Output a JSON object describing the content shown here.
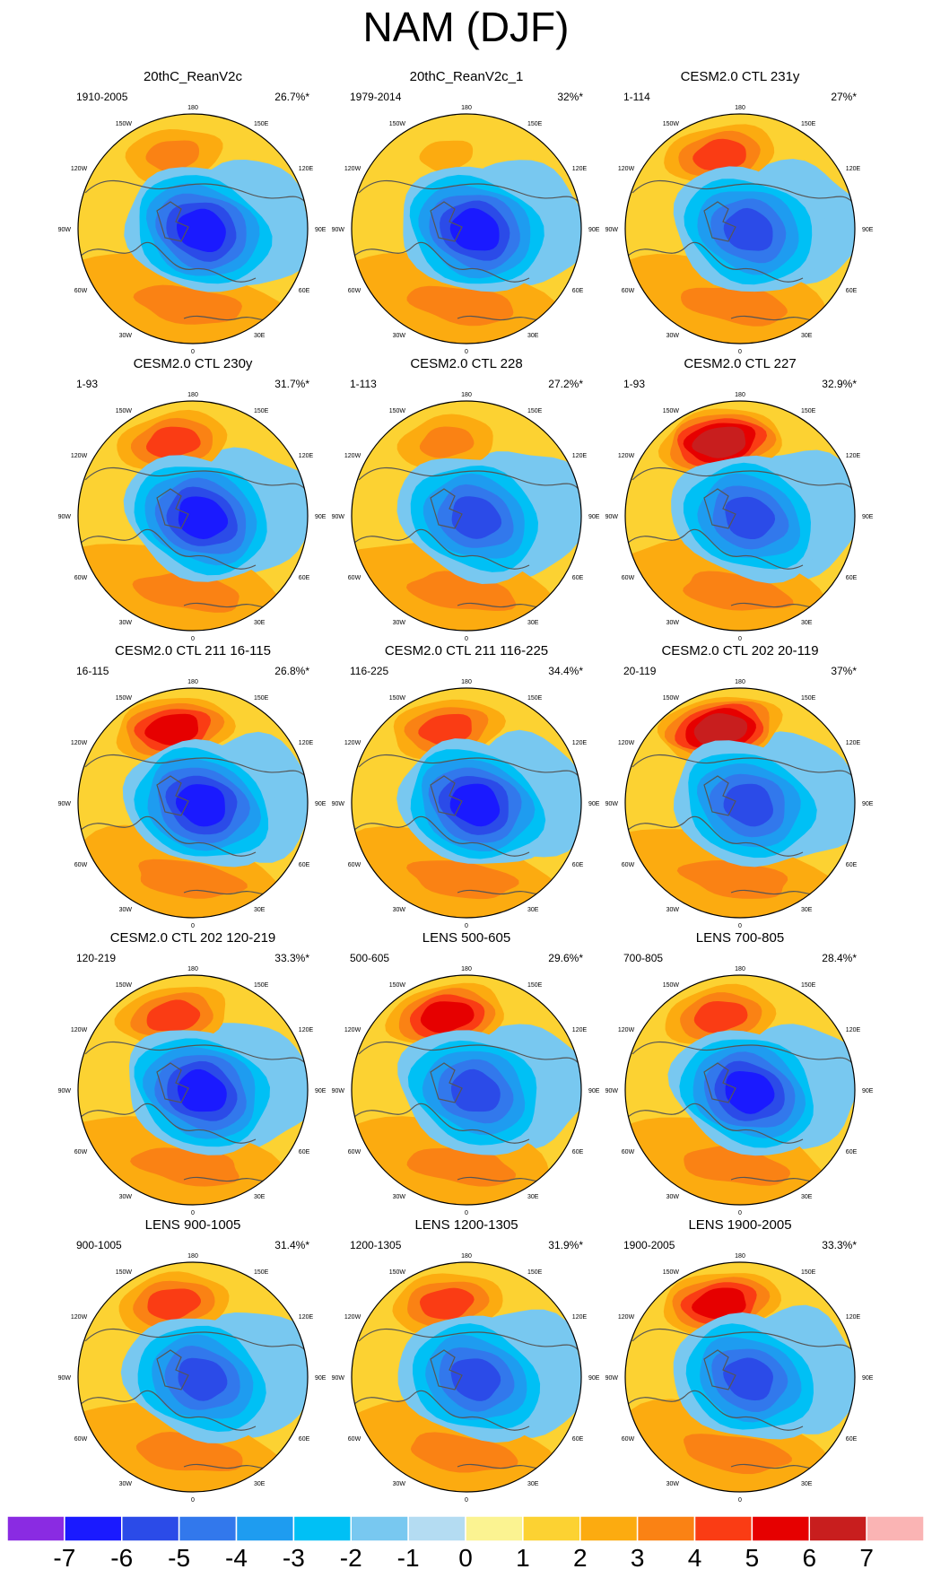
{
  "title": "NAM (DJF)",
  "chart_data": {
    "type": "polar_contour_map_grid",
    "title": "NAM (DJF)",
    "rows": 5,
    "cols": 3,
    "lon_labels": [
      "180",
      "150E",
      "120E",
      "90E",
      "60E",
      "30E",
      "0",
      "30W",
      "60W",
      "90W",
      "120W",
      "150W"
    ],
    "panels": [
      {
        "title": "20thC_ReanV2c",
        "years": "1910-2005",
        "variance": "26.7%*",
        "neg_min": -6,
        "pos_max": 3,
        "pac_pos": 3,
        "atl_pos": 3
      },
      {
        "title": "20thC_ReanV2c_1",
        "years": "1979-2014",
        "variance": "32%*",
        "neg_min": -6,
        "pos_max": 3,
        "pac_pos": 2,
        "atl_pos": 3
      },
      {
        "title": "CESM2.0 CTL 231y",
        "years": "1-114",
        "variance": "27%*",
        "neg_min": -5,
        "pos_max": 4,
        "pac_pos": 4,
        "atl_pos": 3
      },
      {
        "title": "CESM2.0 CTL 230y",
        "years": "1-93",
        "variance": "31.7%*",
        "neg_min": -6,
        "pos_max": 4,
        "pac_pos": 4,
        "atl_pos": 3
      },
      {
        "title": "CESM2.0 CTL 228",
        "years": "1-113",
        "variance": "27.2%*",
        "neg_min": -5,
        "pos_max": 3,
        "pac_pos": 3,
        "atl_pos": 3
      },
      {
        "title": "CESM2.0 CTL 227",
        "years": "1-93",
        "variance": "32.9%*",
        "neg_min": -5,
        "pos_max": 6,
        "pac_pos": 6,
        "atl_pos": 3
      },
      {
        "title": "CESM2.0 CTL 211 16-115",
        "years": "16-115",
        "variance": "26.8%*",
        "neg_min": -6,
        "pos_max": 5,
        "pac_pos": 5,
        "atl_pos": 3
      },
      {
        "title": "CESM2.0 CTL 211 116-225",
        "years": "116-225",
        "variance": "34.4%*",
        "neg_min": -6,
        "pos_max": 4,
        "pac_pos": 4,
        "atl_pos": 3
      },
      {
        "title": "CESM2.0 CTL 202 20-119",
        "years": "20-119",
        "variance": "37%*",
        "neg_min": -5,
        "pos_max": 6,
        "pac_pos": 6,
        "atl_pos": 3
      },
      {
        "title": "CESM2.0 CTL 202 120-219",
        "years": "120-219",
        "variance": "33.3%*",
        "neg_min": -6,
        "pos_max": 4,
        "pac_pos": 4,
        "atl_pos": 3
      },
      {
        "title": "LENS 500-605",
        "years": "500-605",
        "variance": "29.6%*",
        "neg_min": -5,
        "pos_max": 5,
        "pac_pos": 5,
        "atl_pos": 3
      },
      {
        "title": "LENS 700-805",
        "years": "700-805",
        "variance": "28.4%*",
        "neg_min": -6,
        "pos_max": 4,
        "pac_pos": 4,
        "atl_pos": 3
      },
      {
        "title": "LENS 900-1005",
        "years": "900-1005",
        "variance": "31.4%*",
        "neg_min": -5,
        "pos_max": 4,
        "pac_pos": 4,
        "atl_pos": 3
      },
      {
        "title": "LENS 1200-1305",
        "years": "1200-1305",
        "variance": "31.9%*",
        "neg_min": -5,
        "pos_max": 4,
        "pac_pos": 4,
        "atl_pos": 3
      },
      {
        "title": "LENS 1900-2005",
        "years": "1900-2005",
        "variance": "33.3%*",
        "neg_min": -5,
        "pos_max": 5,
        "pac_pos": 5,
        "atl_pos": 3
      }
    ],
    "colorbar": {
      "labels": [
        "-7",
        "-6",
        "-5",
        "-4",
        "-3",
        "-2",
        "-1",
        "0",
        "1",
        "2",
        "3",
        "4",
        "5",
        "6",
        "7"
      ],
      "colors": [
        "#8a2be2",
        "#1a1aff",
        "#2b4be8",
        "#3278ec",
        "#1e9cf0",
        "#00c0f5",
        "#78c8f0",
        "#b4dcf2",
        "#fbf391",
        "#fcd232",
        "#fcab10",
        "#fa8214",
        "#fa3c14",
        "#e60000",
        "#c81e1e",
        "#fab4b4"
      ]
    }
  }
}
